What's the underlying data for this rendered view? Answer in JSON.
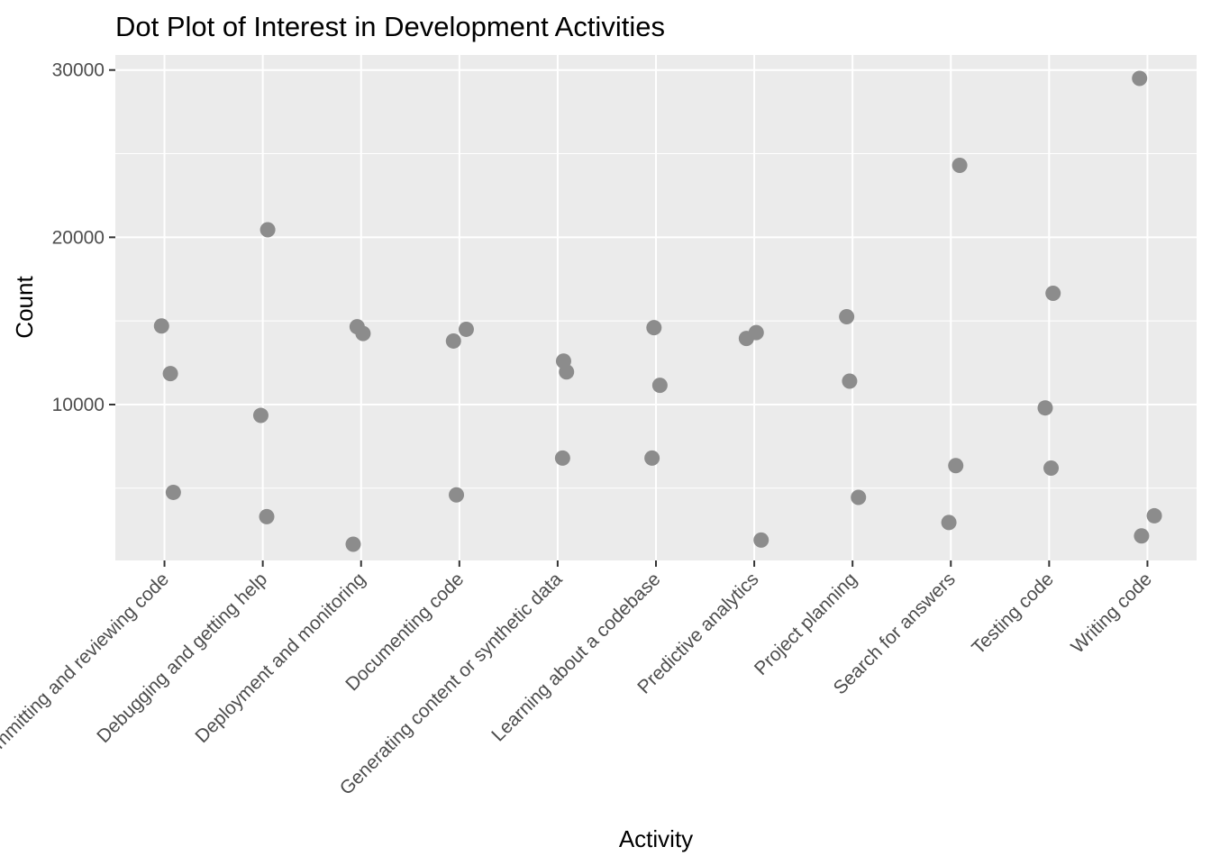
{
  "chart_data": {
    "type": "scatter",
    "title": "Dot Plot of Interest in Development Activities",
    "xlabel": "Activity",
    "ylabel": "Count",
    "categories": [
      "Committing and reviewing code",
      "Debugging and getting help",
      "Deployment and monitoring",
      "Documenting code",
      "Generating content or synthetic data",
      "Learning about a codebase",
      "Predictive analytics",
      "Project planning",
      "Search for answers",
      "Testing code",
      "Writing code"
    ],
    "y_ticks": [
      10000,
      20000,
      30000
    ],
    "y_tick_labels": [
      "10000",
      "20000",
      "30000"
    ],
    "ylim": [
      680,
      30900
    ],
    "grid": true,
    "point_color": "#8c8c8c",
    "panel_color": "#ebebeb",
    "points": [
      {
        "category": "Committing and reviewing code",
        "y": 14700
      },
      {
        "category": "Committing and reviewing code",
        "y": 11850
      },
      {
        "category": "Committing and reviewing code",
        "y": 4750
      },
      {
        "category": "Debugging and getting help",
        "y": 20450
      },
      {
        "category": "Debugging and getting help",
        "y": 9350
      },
      {
        "category": "Debugging and getting help",
        "y": 3300
      },
      {
        "category": "Deployment and monitoring",
        "y": 14650
      },
      {
        "category": "Deployment and monitoring",
        "y": 14250
      },
      {
        "category": "Deployment and monitoring",
        "y": 1650
      },
      {
        "category": "Documenting code",
        "y": 14500
      },
      {
        "category": "Documenting code",
        "y": 13800
      },
      {
        "category": "Documenting code",
        "y": 4600
      },
      {
        "category": "Generating content or synthetic data",
        "y": 12600
      },
      {
        "category": "Generating content or synthetic data",
        "y": 11950
      },
      {
        "category": "Generating content or synthetic data",
        "y": 6800
      },
      {
        "category": "Learning about a codebase",
        "y": 14600
      },
      {
        "category": "Learning about a codebase",
        "y": 11150
      },
      {
        "category": "Learning about a codebase",
        "y": 6800
      },
      {
        "category": "Predictive analytics",
        "y": 14300
      },
      {
        "category": "Predictive analytics",
        "y": 13950
      },
      {
        "category": "Predictive analytics",
        "y": 1900
      },
      {
        "category": "Project planning",
        "y": 15250
      },
      {
        "category": "Project planning",
        "y": 11400
      },
      {
        "category": "Project planning",
        "y": 4450
      },
      {
        "category": "Search for answers",
        "y": 24300
      },
      {
        "category": "Search for answers",
        "y": 6350
      },
      {
        "category": "Search for answers",
        "y": 2950
      },
      {
        "category": "Testing code",
        "y": 16650
      },
      {
        "category": "Testing code",
        "y": 9800
      },
      {
        "category": "Testing code",
        "y": 6200
      },
      {
        "category": "Writing code",
        "y": 29500
      },
      {
        "category": "Writing code",
        "y": 3350
      },
      {
        "category": "Writing code",
        "y": 2150
      }
    ]
  }
}
